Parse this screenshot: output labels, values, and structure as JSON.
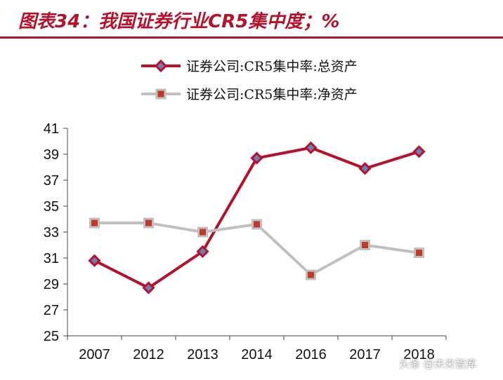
{
  "title": "图表34：我国证券行业CR5集中度；%",
  "chart_data": {
    "type": "line",
    "categories": [
      "2007",
      "2012",
      "2013",
      "2014",
      "2016",
      "2017",
      "2018"
    ],
    "series": [
      {
        "name": "证券公司:CR5集中率:总资产",
        "color": "#b5112b",
        "marker_fill": "#6a7fb5",
        "marker": "diamond",
        "values": [
          30.8,
          28.7,
          31.5,
          38.7,
          39.5,
          37.9,
          39.2
        ]
      },
      {
        "name": "证券公司:CR5集中率:净资产",
        "color": "#c0c0c0",
        "marker_fill": "#c0392b",
        "marker": "square",
        "values": [
          33.7,
          33.7,
          33.0,
          33.6,
          29.7,
          32.0,
          31.4
        ]
      }
    ],
    "y_ticks": [
      "25",
      "27",
      "29",
      "31",
      "33",
      "35",
      "37",
      "39",
      "41"
    ],
    "ylim": [
      25,
      41
    ],
    "legend_position": "top",
    "grid": false
  },
  "watermark": "头条 @未来智库"
}
